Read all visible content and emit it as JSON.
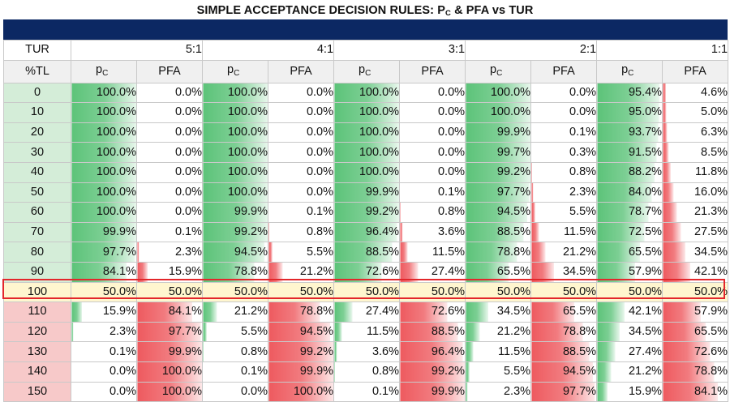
{
  "title": {
    "main": "SIMPLE ACCEPTANCE DECISION RULES: P",
    "sub": "C",
    "rest": " & PFA vs TUR"
  },
  "header": {
    "corner": "TUR",
    "groups": [
      "5:1",
      "4:1",
      "3:1",
      "2:1",
      "1:1"
    ]
  },
  "subheader": {
    "corner": "%TL",
    "pc_main": "p",
    "pc_sub": "C",
    "pfa": "PFA"
  },
  "colors": {
    "band": "#0c2863",
    "green": "#5cc379",
    "red": "#ee5a5f",
    "highlight": "#fff6cf",
    "highlight_border": "#e3262b"
  },
  "highlight_row": "100",
  "rows": [
    {
      "tl": "0",
      "cells": [
        [
          "100.0%",
          "0.0%"
        ],
        [
          "100.0%",
          "0.0%"
        ],
        [
          "100.0%",
          "0.0%"
        ],
        [
          "100.0%",
          "0.0%"
        ],
        [
          "95.4%",
          "4.6%"
        ]
      ]
    },
    {
      "tl": "10",
      "cells": [
        [
          "100.0%",
          "0.0%"
        ],
        [
          "100.0%",
          "0.0%"
        ],
        [
          "100.0%",
          "0.0%"
        ],
        [
          "100.0%",
          "0.0%"
        ],
        [
          "95.0%",
          "5.0%"
        ]
      ]
    },
    {
      "tl": "20",
      "cells": [
        [
          "100.0%",
          "0.0%"
        ],
        [
          "100.0%",
          "0.0%"
        ],
        [
          "100.0%",
          "0.0%"
        ],
        [
          "99.9%",
          "0.1%"
        ],
        [
          "93.7%",
          "6.3%"
        ]
      ]
    },
    {
      "tl": "30",
      "cells": [
        [
          "100.0%",
          "0.0%"
        ],
        [
          "100.0%",
          "0.0%"
        ],
        [
          "100.0%",
          "0.0%"
        ],
        [
          "99.7%",
          "0.3%"
        ],
        [
          "91.5%",
          "8.5%"
        ]
      ]
    },
    {
      "tl": "40",
      "cells": [
        [
          "100.0%",
          "0.0%"
        ],
        [
          "100.0%",
          "0.0%"
        ],
        [
          "100.0%",
          "0.0%"
        ],
        [
          "99.2%",
          "0.8%"
        ],
        [
          "88.2%",
          "11.8%"
        ]
      ]
    },
    {
      "tl": "50",
      "cells": [
        [
          "100.0%",
          "0.0%"
        ],
        [
          "100.0%",
          "0.0%"
        ],
        [
          "99.9%",
          "0.1%"
        ],
        [
          "97.7%",
          "2.3%"
        ],
        [
          "84.0%",
          "16.0%"
        ]
      ]
    },
    {
      "tl": "60",
      "cells": [
        [
          "100.0%",
          "0.0%"
        ],
        [
          "99.9%",
          "0.1%"
        ],
        [
          "99.2%",
          "0.8%"
        ],
        [
          "94.5%",
          "5.5%"
        ],
        [
          "78.7%",
          "21.3%"
        ]
      ]
    },
    {
      "tl": "70",
      "cells": [
        [
          "99.9%",
          "0.1%"
        ],
        [
          "99.2%",
          "0.8%"
        ],
        [
          "96.4%",
          "3.6%"
        ],
        [
          "88.5%",
          "11.5%"
        ],
        [
          "72.5%",
          "27.5%"
        ]
      ]
    },
    {
      "tl": "80",
      "cells": [
        [
          "97.7%",
          "2.3%"
        ],
        [
          "94.5%",
          "5.5%"
        ],
        [
          "88.5%",
          "11.5%"
        ],
        [
          "78.8%",
          "21.2%"
        ],
        [
          "65.5%",
          "34.5%"
        ]
      ]
    },
    {
      "tl": "90",
      "cells": [
        [
          "84.1%",
          "15.9%"
        ],
        [
          "78.8%",
          "21.2%"
        ],
        [
          "72.6%",
          "27.4%"
        ],
        [
          "65.5%",
          "34.5%"
        ],
        [
          "57.9%",
          "42.1%"
        ]
      ]
    },
    {
      "tl": "100",
      "cells": [
        [
          "50.0%",
          "50.0%"
        ],
        [
          "50.0%",
          "50.0%"
        ],
        [
          "50.0%",
          "50.0%"
        ],
        [
          "50.0%",
          "50.0%"
        ],
        [
          "50.0%",
          "50.0%"
        ]
      ]
    },
    {
      "tl": "110",
      "cells": [
        [
          "15.9%",
          "84.1%"
        ],
        [
          "21.2%",
          "78.8%"
        ],
        [
          "27.4%",
          "72.6%"
        ],
        [
          "34.5%",
          "65.5%"
        ],
        [
          "42.1%",
          "57.9%"
        ]
      ]
    },
    {
      "tl": "120",
      "cells": [
        [
          "2.3%",
          "97.7%"
        ],
        [
          "5.5%",
          "94.5%"
        ],
        [
          "11.5%",
          "88.5%"
        ],
        [
          "21.2%",
          "78.8%"
        ],
        [
          "34.5%",
          "65.5%"
        ]
      ]
    },
    {
      "tl": "130",
      "cells": [
        [
          "0.1%",
          "99.9%"
        ],
        [
          "0.8%",
          "99.2%"
        ],
        [
          "3.6%",
          "96.4%"
        ],
        [
          "11.5%",
          "88.5%"
        ],
        [
          "27.4%",
          "72.6%"
        ]
      ]
    },
    {
      "tl": "140",
      "cells": [
        [
          "0.0%",
          "100.0%"
        ],
        [
          "0.1%",
          "99.9%"
        ],
        [
          "0.8%",
          "99.2%"
        ],
        [
          "5.5%",
          "94.5%"
        ],
        [
          "21.2%",
          "78.8%"
        ]
      ]
    },
    {
      "tl": "150",
      "cells": [
        [
          "0.0%",
          "100.0%"
        ],
        [
          "0.0%",
          "100.0%"
        ],
        [
          "0.1%",
          "99.9%"
        ],
        [
          "2.3%",
          "97.7%"
        ],
        [
          "15.9%",
          "84.1%"
        ]
      ]
    }
  ]
}
